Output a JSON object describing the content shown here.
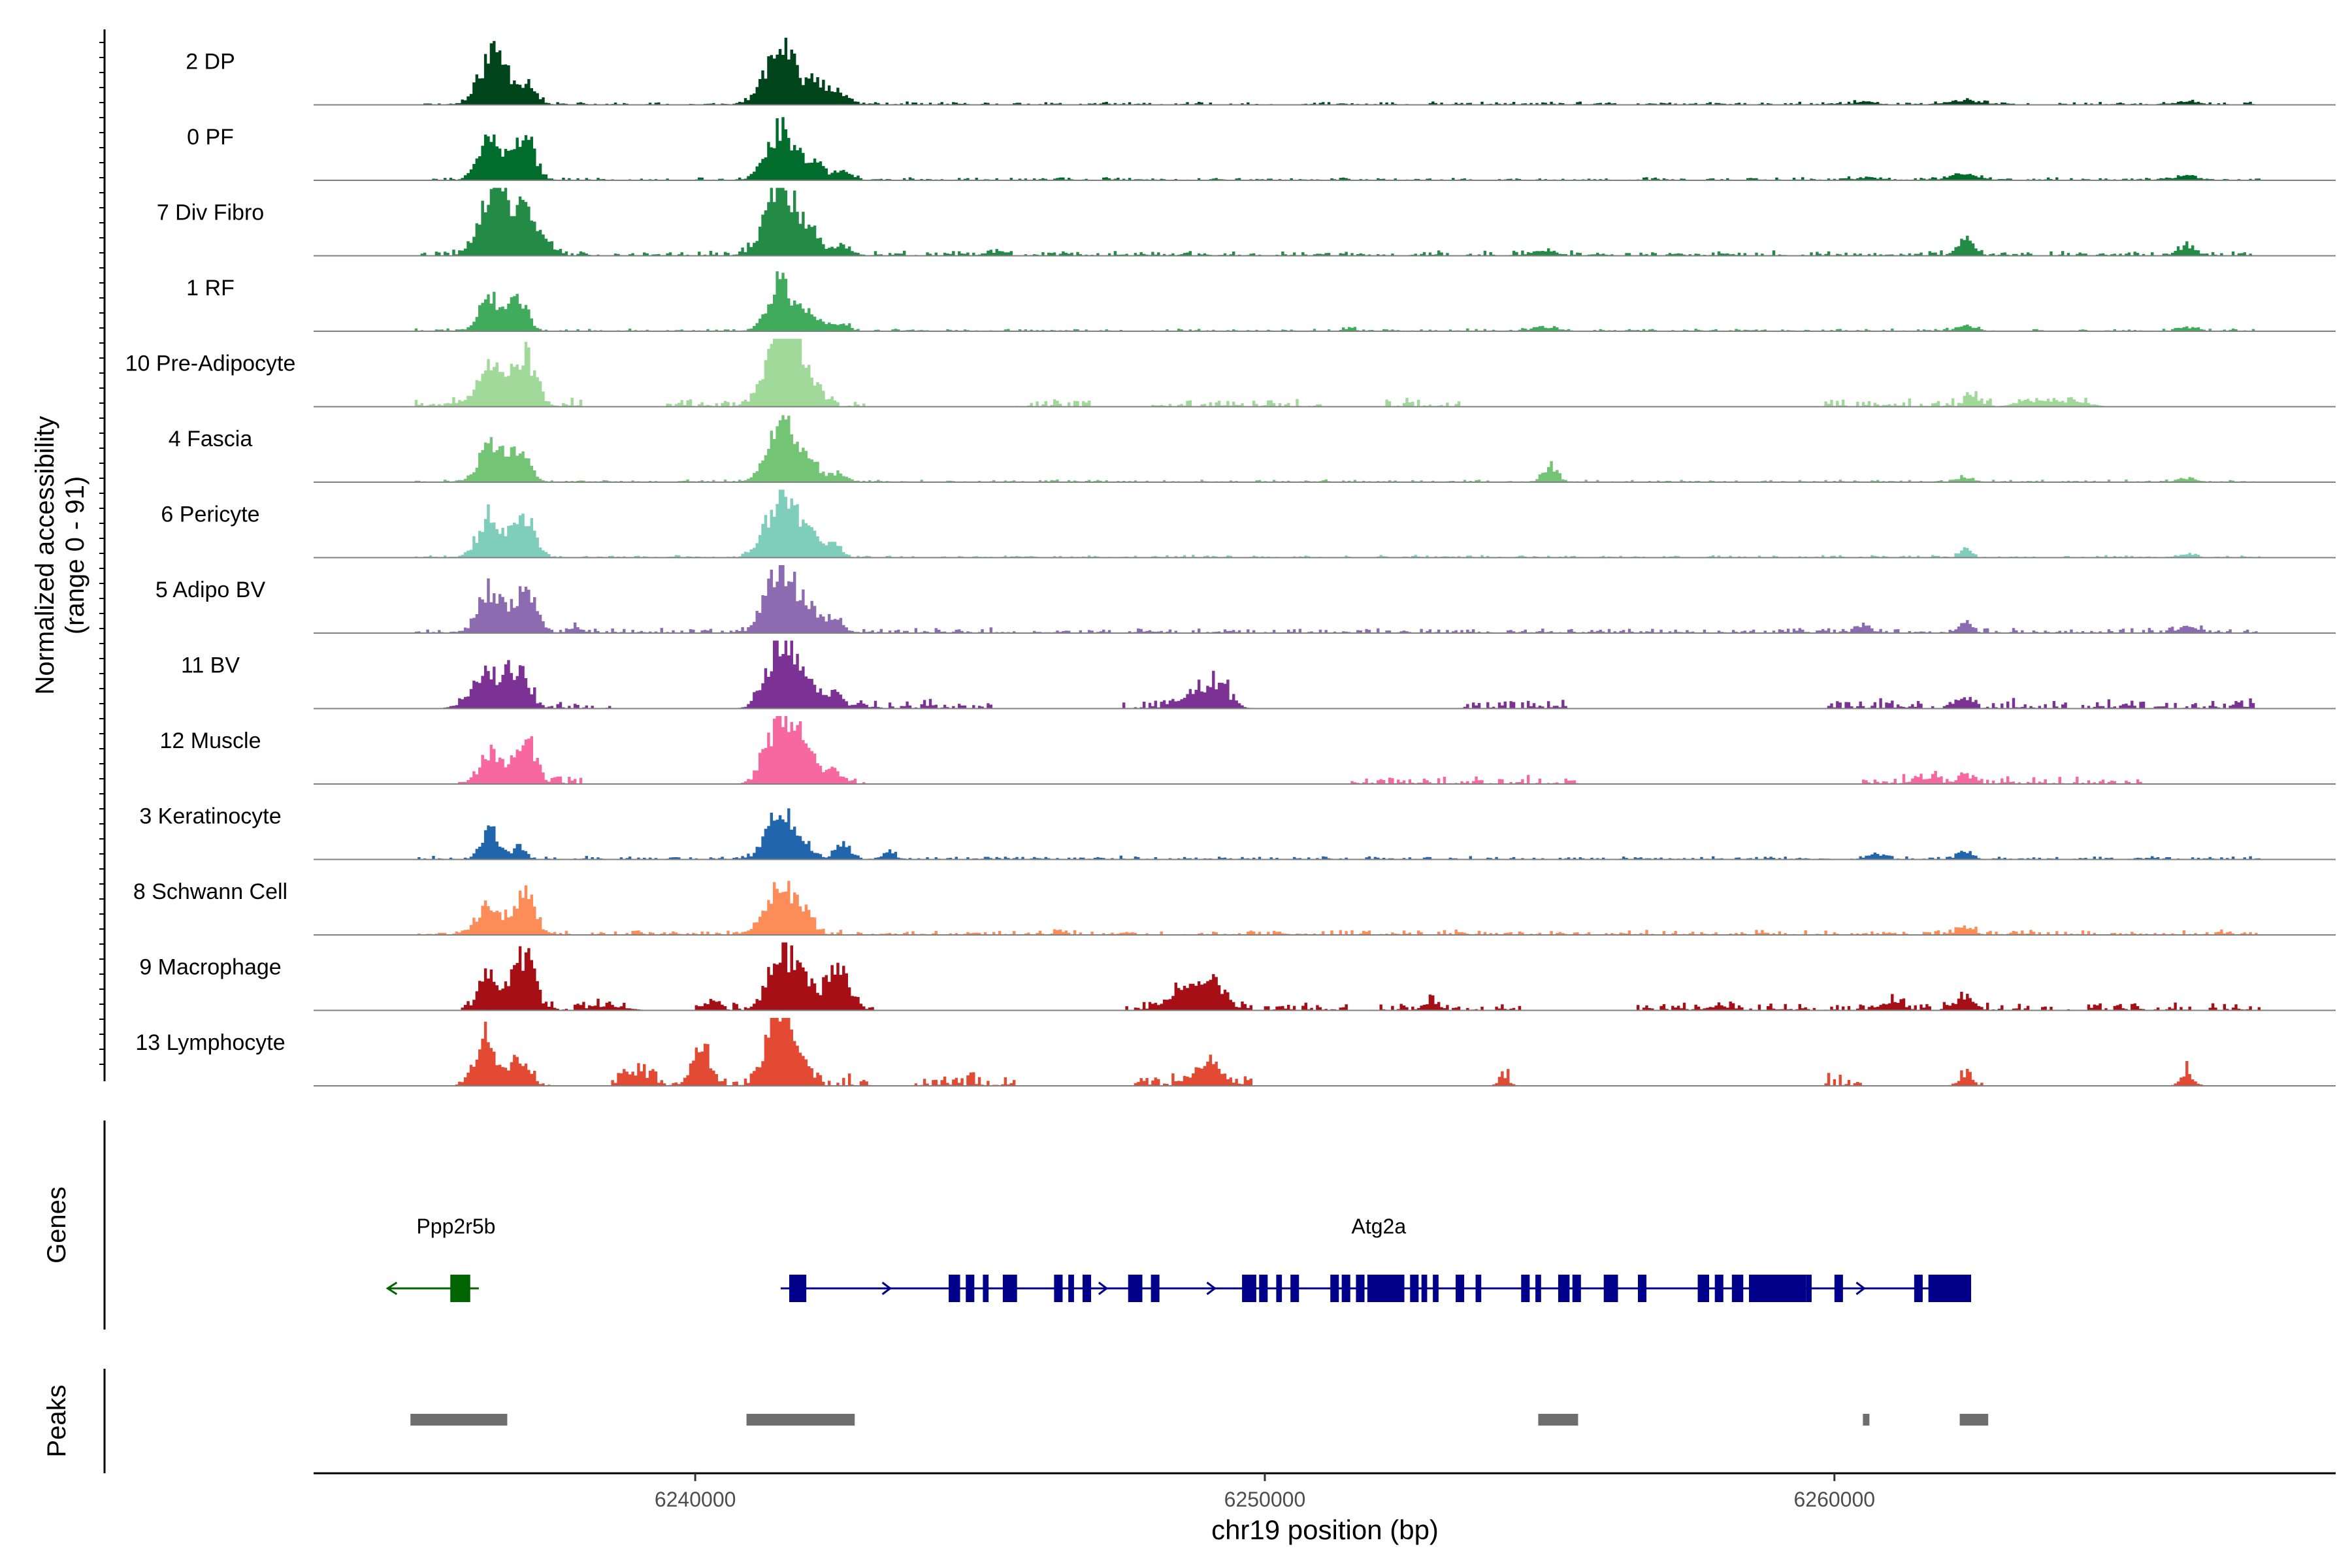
{
  "chart_data": {
    "type": "area",
    "title": "",
    "ylabel_line1": "Normalized accessibility",
    "ylabel_line2": "(range 0 - 91)",
    "yrange": [
      0,
      91
    ],
    "xlabel": "chr19 position (bp)",
    "xlim": [
      6233300,
      6268800
    ],
    "xticks": [
      6240000,
      6250000,
      6260000
    ],
    "xtick_labels": [
      "6240000",
      "6250000",
      "6260000"
    ],
    "tracks": [
      {
        "name": "2 DP",
        "color": "#00441b",
        "peaks": [
          [
            6236400,
            0.55,
            220
          ],
          [
            6236600,
            0.35,
            180
          ],
          [
            6237050,
            0.32,
            160
          ],
          [
            6241500,
            0.95,
            250
          ],
          [
            6242150,
            0.3,
            200
          ],
          [
            6242600,
            0.12,
            150
          ],
          [
            6262300,
            0.06,
            300
          ],
          [
            6266200,
            0.05,
            200
          ],
          [
            6260500,
            0.04,
            200
          ]
        ],
        "noise": 0.018,
        "noiseRanges": [
          [
            6235000,
            6267500
          ]
        ],
        "seed": 11
      },
      {
        "name": "0 PF",
        "color": "#006d2c",
        "peaks": [
          [
            6236400,
            0.6,
            200
          ],
          [
            6237000,
            0.65,
            180
          ],
          [
            6241500,
            0.75,
            240
          ],
          [
            6242050,
            0.25,
            200
          ],
          [
            6242600,
            0.12,
            150
          ],
          [
            6262300,
            0.08,
            250
          ],
          [
            6266200,
            0.06,
            200
          ],
          [
            6260600,
            0.04,
            200
          ]
        ],
        "noise": 0.018,
        "noiseRanges": [
          [
            6235000,
            6267500
          ]
        ],
        "seed": 21
      },
      {
        "name": "7 Div Fibro",
        "color": "#238b45",
        "peaks": [
          [
            6236400,
            0.75,
            220
          ],
          [
            6236600,
            0.5,
            160
          ],
          [
            6237000,
            0.6,
            180
          ],
          [
            6237400,
            0.15,
            150
          ],
          [
            6241500,
            0.95,
            260
          ],
          [
            6242000,
            0.3,
            200
          ],
          [
            6242600,
            0.15,
            140
          ],
          [
            6262300,
            0.2,
            150
          ],
          [
            6266200,
            0.15,
            150
          ],
          [
            6254900,
            0.08,
            200
          ],
          [
            6245300,
            0.07,
            100
          ]
        ],
        "noise": 0.03,
        "noiseRanges": [
          [
            6235000,
            6267500
          ]
        ],
        "seed": 31
      },
      {
        "name": "1 RF",
        "color": "#41ab5d",
        "peaks": [
          [
            6236400,
            0.5,
            180
          ],
          [
            6236900,
            0.45,
            160
          ],
          [
            6241500,
            0.7,
            220
          ],
          [
            6242050,
            0.25,
            180
          ],
          [
            6242600,
            0.12,
            120
          ],
          [
            6262300,
            0.08,
            150
          ],
          [
            6266200,
            0.06,
            150
          ],
          [
            6254900,
            0.06,
            200
          ],
          [
            6251500,
            0.05,
            100
          ]
        ],
        "noise": 0.015,
        "noiseRanges": [
          [
            6235000,
            6267500
          ]
        ],
        "seed": 41
      },
      {
        "name": "10 Pre-Adipocyte",
        "color": "#a1d99b",
        "peaks": [
          [
            6236400,
            0.65,
            220
          ],
          [
            6237000,
            0.7,
            200
          ],
          [
            6241500,
            0.95,
            260
          ],
          [
            6241800,
            0.5,
            200
          ],
          [
            6242200,
            0.15,
            150
          ],
          [
            6262400,
            0.15,
            120
          ],
          [
            6263500,
            0.08,
            300
          ],
          [
            6264200,
            0.06,
            300
          ]
        ],
        "noise": 0.05,
        "noiseRanges": [
          [
            6235000,
            6238000
          ],
          [
            6239500,
            6243000
          ],
          [
            6245500,
            6247000
          ],
          [
            6248000,
            6251000
          ],
          [
            6252000,
            6253500
          ],
          [
            6259800,
            6262800
          ],
          [
            6263000,
            6264500
          ]
        ],
        "seed": 51
      },
      {
        "name": "4 Fascia",
        "color": "#74c476",
        "peaks": [
          [
            6236400,
            0.5,
            200
          ],
          [
            6236900,
            0.45,
            180
          ],
          [
            6241500,
            0.75,
            240
          ],
          [
            6241950,
            0.35,
            200
          ],
          [
            6242550,
            0.12,
            130
          ],
          [
            6255000,
            0.22,
            130
          ],
          [
            6262300,
            0.06,
            150
          ],
          [
            6266200,
            0.05,
            150
          ]
        ],
        "noise": 0.015,
        "noiseRanges": [
          [
            6235000,
            6267500
          ]
        ],
        "seed": 61
      },
      {
        "name": "6 Pericyte",
        "color": "#7fcdbb",
        "peaks": [
          [
            6236400,
            0.6,
            200
          ],
          [
            6237000,
            0.65,
            180
          ],
          [
            6241500,
            0.85,
            250
          ],
          [
            6241950,
            0.35,
            180
          ],
          [
            6242400,
            0.2,
            150
          ],
          [
            6262300,
            0.12,
            100
          ],
          [
            6266200,
            0.05,
            150
          ]
        ],
        "noise": 0.015,
        "noiseRanges": [
          [
            6235000,
            6267500
          ]
        ],
        "seed": 71
      },
      {
        "name": "5 Adipo BV",
        "color": "#8c6bb1",
        "peaks": [
          [
            6236400,
            0.6,
            200
          ],
          [
            6237000,
            0.65,
            180
          ],
          [
            6241500,
            0.95,
            250
          ],
          [
            6242000,
            0.3,
            200
          ],
          [
            6242450,
            0.2,
            150
          ],
          [
            6262300,
            0.15,
            120
          ],
          [
            6266200,
            0.1,
            150
          ],
          [
            6260500,
            0.08,
            150
          ],
          [
            6237900,
            0.08,
            120
          ]
        ],
        "noise": 0.03,
        "noiseRanges": [
          [
            6235000,
            6267500
          ]
        ],
        "seed": 81
      },
      {
        "name": "11 BV",
        "color": "#7b3294",
        "peaks": [
          [
            6236400,
            0.5,
            200
          ],
          [
            6236900,
            0.55,
            180
          ],
          [
            6241500,
            0.95,
            240
          ],
          [
            6242000,
            0.3,
            200
          ],
          [
            6242450,
            0.2,
            150
          ],
          [
            6248800,
            0.2,
            300
          ],
          [
            6249200,
            0.25,
            200
          ],
          [
            6262300,
            0.12,
            120
          ],
          [
            6236000,
            0.1,
            200
          ]
        ],
        "noise": 0.06,
        "noiseRanges": [
          [
            6235800,
            6238500
          ],
          [
            6241000,
            6245200
          ],
          [
            6247500,
            6249500
          ],
          [
            6253500,
            6255300
          ],
          [
            6259800,
            6267500
          ]
        ],
        "seed": 91
      },
      {
        "name": "12 Muscle",
        "color": "#f768a1",
        "peaks": [
          [
            6236400,
            0.45,
            180
          ],
          [
            6237000,
            0.7,
            180
          ],
          [
            6241500,
            0.95,
            240
          ],
          [
            6241900,
            0.4,
            200
          ],
          [
            6242400,
            0.2,
            150
          ],
          [
            6262300,
            0.12,
            120
          ],
          [
            6261600,
            0.08,
            200
          ]
        ],
        "noise": 0.05,
        "noiseRanges": [
          [
            6235800,
            6238000
          ],
          [
            6241000,
            6243000
          ],
          [
            6251500,
            6255500
          ],
          [
            6260500,
            6265500
          ]
        ],
        "seed": 101
      },
      {
        "name": "3 Keratinocyte",
        "color": "#2166ac",
        "peaks": [
          [
            6236400,
            0.45,
            150
          ],
          [
            6236900,
            0.18,
            120
          ],
          [
            6241500,
            0.75,
            220
          ],
          [
            6241900,
            0.2,
            180
          ],
          [
            6242600,
            0.22,
            120
          ],
          [
            6243400,
            0.1,
            120
          ],
          [
            6260700,
            0.08,
            150
          ],
          [
            6262300,
            0.12,
            120
          ]
        ],
        "noise": 0.02,
        "noiseRanges": [
          [
            6235000,
            6267500
          ]
        ],
        "seed": 111
      },
      {
        "name": "8 Schwann Cell",
        "color": "#fc8d59",
        "peaks": [
          [
            6236400,
            0.45,
            200
          ],
          [
            6237000,
            0.6,
            180
          ],
          [
            6241500,
            0.7,
            240
          ],
          [
            6241900,
            0.2,
            180
          ],
          [
            6262300,
            0.1,
            150
          ]
        ],
        "noise": 0.03,
        "noiseRanges": [
          [
            6235000,
            6267500
          ]
        ],
        "seed": 121
      },
      {
        "name": "9 Macrophage",
        "color": "#a50f15",
        "peaks": [
          [
            6236400,
            0.55,
            180
          ],
          [
            6237000,
            0.8,
            180
          ],
          [
            6241500,
            0.75,
            220
          ],
          [
            6241900,
            0.35,
            200
          ],
          [
            6242500,
            0.6,
            200
          ],
          [
            6248600,
            0.25,
            300
          ],
          [
            6249100,
            0.35,
            200
          ],
          [
            6240300,
            0.1,
            150
          ],
          [
            6252900,
            0.1,
            120
          ],
          [
            6261000,
            0.1,
            200
          ],
          [
            6262300,
            0.18,
            150
          ],
          [
            6238500,
            0.06,
            300
          ],
          [
            6258000,
            0.06,
            200
          ]
        ],
        "noise": 0.05,
        "noiseRanges": [
          [
            6235800,
            6238800
          ],
          [
            6240000,
            6243200
          ],
          [
            6247500,
            6249800
          ],
          [
            6250000,
            6251500
          ],
          [
            6252000,
            6254500
          ],
          [
            6256500,
            6267500
          ]
        ],
        "seed": 131
      },
      {
        "name": "13 Lymphocyte",
        "color": "#e34a33",
        "peaks": [
          [
            6236300,
            0.6,
            180
          ],
          [
            6236900,
            0.45,
            160
          ],
          [
            6240100,
            0.55,
            150
          ],
          [
            6241400,
            0.75,
            200
          ],
          [
            6241700,
            0.55,
            200
          ],
          [
            6249000,
            0.3,
            250
          ],
          [
            6262300,
            0.15,
            120
          ],
          [
            6266200,
            0.15,
            120
          ],
          [
            6254200,
            0.12,
            100
          ],
          [
            6239000,
            0.2,
            200
          ]
        ],
        "noise": 0.08,
        "noiseRanges": [
          [
            6235800,
            6237500
          ],
          [
            6238500,
            6243200
          ],
          [
            6243800,
            6245600
          ],
          [
            6247700,
            6249900
          ],
          [
            6254100,
            6254300
          ],
          [
            6259800,
            6260500
          ],
          [
            6262200,
            6262600
          ],
          [
            6266100,
            6266300
          ]
        ],
        "seed": 141
      }
    ],
    "genes_label": "Genes",
    "peaks_label": "Peaks",
    "genes": [
      {
        "name": "Ppp2r5b",
        "color": "#006400",
        "strand": "-",
        "start": 6234600,
        "end": 6236200,
        "label_pos": 6235800,
        "exons": [
          [
            6235700,
            6236050
          ]
        ]
      },
      {
        "name": "Atg2a",
        "color": "#00008b",
        "strand": "+",
        "start": 6241500,
        "end": 6262400,
        "label_pos": 6252000,
        "exons": [
          [
            6241650,
            6241950
          ],
          [
            6244450,
            6244650
          ],
          [
            6244750,
            6244900
          ],
          [
            6245050,
            6245150
          ],
          [
            6245400,
            6245650
          ],
          [
            6246300,
            6246450
          ],
          [
            6246550,
            6246650
          ],
          [
            6246800,
            6246950
          ],
          [
            6247600,
            6247850
          ],
          [
            6248000,
            6248150
          ],
          [
            6249600,
            6249850
          ],
          [
            6249900,
            6250050
          ],
          [
            6250200,
            6250300
          ],
          [
            6250450,
            6250600
          ],
          [
            6251150,
            6251300
          ],
          [
            6251350,
            6251500
          ],
          [
            6251600,
            6251750
          ],
          [
            6251800,
            6252450
          ],
          [
            6252550,
            6252700
          ],
          [
            6252750,
            6252850
          ],
          [
            6252950,
            6253050
          ],
          [
            6253350,
            6253500
          ],
          [
            6253700,
            6253800
          ],
          [
            6254500,
            6254650
          ],
          [
            6254750,
            6254850
          ],
          [
            6255150,
            6255350
          ],
          [
            6255400,
            6255550
          ],
          [
            6255950,
            6256200
          ],
          [
            6256550,
            6256700
          ],
          [
            6257600,
            6257800
          ],
          [
            6257900,
            6258050
          ],
          [
            6258200,
            6258400
          ],
          [
            6258500,
            6259500
          ],
          [
            6259500,
            6259600
          ],
          [
            6260000,
            6260150
          ],
          [
            6261400,
            6261550
          ],
          [
            6261650,
            6262400
          ]
        ]
      }
    ],
    "peak_regions": [
      [
        6235000,
        6236700
      ],
      [
        6240900,
        6242800
      ],
      [
        6254800,
        6255500
      ],
      [
        6260500,
        6260600
      ],
      [
        6262200,
        6262700
      ]
    ]
  }
}
